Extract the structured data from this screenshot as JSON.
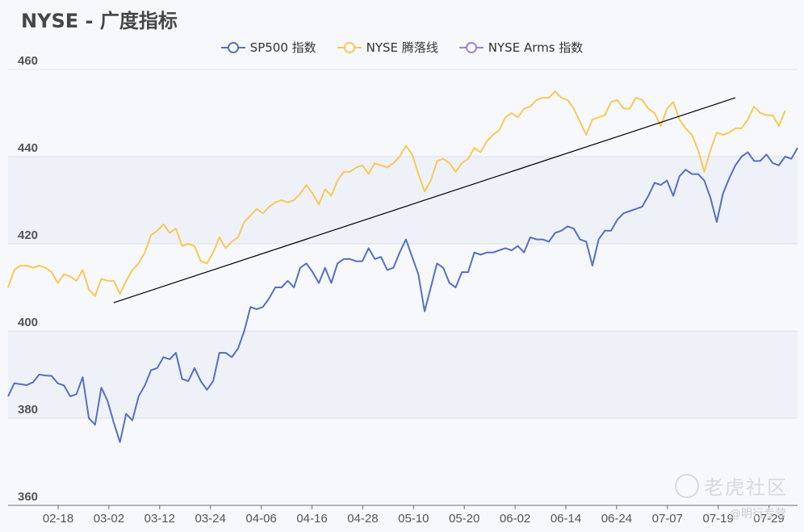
{
  "chart_data": {
    "type": "line",
    "title": "NYSE - 广度指标",
    "xlabel": "",
    "ylabel": "",
    "ylim": [
      360,
      460
    ],
    "yticks": [
      360,
      380,
      400,
      420,
      440,
      460
    ],
    "x_tick_labels": [
      "02-18",
      "03-02",
      "03-12",
      "03-24",
      "04-06",
      "04-16",
      "04-28",
      "05-10",
      "05-20",
      "06-02",
      "06-14",
      "06-24",
      "07-07",
      "07-19",
      "07-29"
    ],
    "grid": true,
    "legend_position": "top-center",
    "series": [
      {
        "name": "SP500 指数",
        "color": "#5470c6",
        "values": [
          385,
          388,
          387.8,
          387.6,
          388.2,
          390,
          389.8,
          389.7,
          388,
          387.5,
          385,
          385.5,
          389.4,
          380,
          378.5,
          387,
          384,
          379,
          374.5,
          381,
          379.5,
          385,
          387.5,
          391,
          391.5,
          394,
          393.5,
          395,
          389,
          388.5,
          391.5,
          388.5,
          386.5,
          388.5,
          395,
          395,
          394,
          396,
          400,
          405.5,
          405,
          405.5,
          407.5,
          410,
          410,
          411.5,
          410,
          414.5,
          415.5,
          413.5,
          411,
          414.5,
          411,
          415.5,
          416.5,
          416.5,
          416,
          416,
          419,
          416.5,
          417,
          414,
          414.5,
          418,
          421,
          417,
          413,
          404.5,
          410,
          415.5,
          414.5,
          411,
          410,
          413.5,
          413.5,
          418,
          417.5,
          418,
          418,
          418.5,
          419,
          418.5,
          419.5,
          418,
          421.5,
          421,
          421,
          420.5,
          422.5,
          423,
          424,
          423.5,
          421,
          420.5,
          415,
          421,
          423,
          423,
          425.5,
          427,
          427.5,
          428,
          428.5,
          431,
          434,
          433.5,
          434.5,
          431,
          435.5,
          437,
          436,
          436,
          434.5,
          430.5,
          425,
          431.5,
          435,
          438,
          440,
          441,
          439,
          439,
          440.5,
          438.5,
          438,
          440,
          439.5,
          442
        ]
      },
      {
        "name": "NYSE 腾落线",
        "color": "#fac858",
        "values": [
          410,
          414,
          415,
          415,
          414.5,
          415,
          414.5,
          413.5,
          411,
          413,
          412.5,
          411.5,
          414,
          409.5,
          408,
          412,
          411.5,
          411.5,
          408.5,
          411.5,
          414,
          415.5,
          418,
          422,
          423,
          424.5,
          422.5,
          423.5,
          419.5,
          420,
          419.5,
          416,
          415.5,
          418,
          421.5,
          419,
          420.5,
          421.5,
          425,
          426.5,
          428,
          427,
          428.5,
          429.5,
          430,
          429.5,
          430,
          431.5,
          433.5,
          431.5,
          429,
          432.5,
          431,
          434.5,
          436.5,
          436.5,
          437.5,
          438,
          436,
          438.5,
          438,
          437.5,
          438.5,
          440,
          442.5,
          440.5,
          436,
          432,
          434.5,
          439,
          439.5,
          438.5,
          436.5,
          438.5,
          439.5,
          442,
          441,
          443.5,
          445,
          446,
          449,
          450,
          449,
          451,
          451.5,
          453,
          453.5,
          453.5,
          455,
          453.5,
          453,
          451,
          448,
          445,
          448.5,
          449,
          449.5,
          452.5,
          453,
          451,
          451,
          453.5,
          453,
          451,
          450,
          447,
          451,
          452.5,
          448.5,
          446.5,
          445,
          441.5,
          436.5,
          441.5,
          445.5,
          445,
          445.5,
          446.5,
          446.5,
          448.5,
          451.5,
          450,
          449.5,
          449.5,
          447,
          450.5
        ]
      },
      {
        "name": "NYSE Arms 指数",
        "color": "#9a85d8",
        "values": []
      }
    ],
    "annotations": [
      {
        "type": "trendline",
        "color": "#000000",
        "from": {
          "index": 17,
          "value": 406.5
        },
        "to": {
          "index": 117,
          "value": 453.5
        }
      }
    ]
  },
  "watermark": {
    "text": "老虎社区",
    "sub": "@明行专营"
  }
}
